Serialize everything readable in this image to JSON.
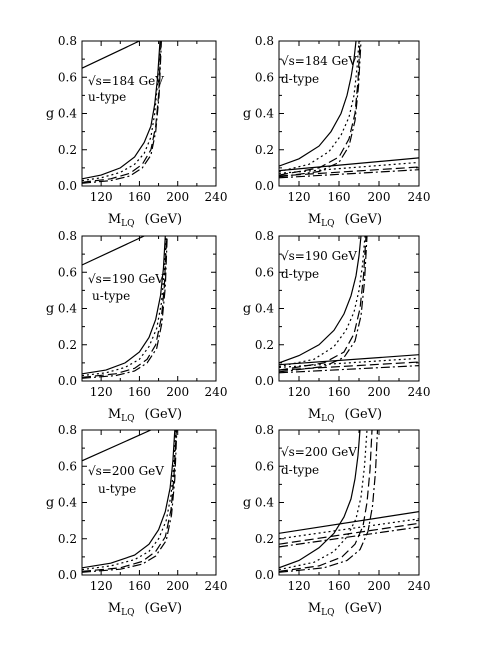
{
  "chart_data": [
    {
      "type": "line",
      "panel": "top-left",
      "xlabel_main": "M",
      "xlabel_sub": "LQ",
      "xlabel_unit": "(GeV)",
      "ylabel": "g",
      "xlim": [
        100,
        240
      ],
      "ylim": [
        0.0,
        0.8
      ],
      "xticks": [
        "120",
        "160",
        "200",
        "240"
      ],
      "yticks": [
        "0.0",
        "0.2",
        "0.4",
        "0.6",
        "0.8"
      ],
      "annotations": [
        "√s=184 GeV",
        "u-type"
      ],
      "series": [
        {
          "style": "solid",
          "thick": true,
          "x": [
            100,
            160
          ],
          "y": [
            0.65,
            0.8
          ]
        },
        {
          "style": "solid",
          "x": [
            100,
            120,
            140,
            155,
            165,
            172,
            176,
            179,
            181.5
          ],
          "y": [
            0.04,
            0.06,
            0.1,
            0.16,
            0.24,
            0.33,
            0.45,
            0.6,
            0.8
          ]
        },
        {
          "style": "dotted",
          "x": [
            100,
            120,
            140,
            155,
            165,
            172,
            176,
            179,
            182
          ],
          "y": [
            0.03,
            0.045,
            0.075,
            0.12,
            0.18,
            0.27,
            0.4,
            0.57,
            0.8
          ]
        },
        {
          "style": "dashed",
          "x": [
            100,
            130,
            150,
            163,
            172,
            177,
            180,
            182.5
          ],
          "y": [
            0.02,
            0.04,
            0.07,
            0.12,
            0.2,
            0.33,
            0.5,
            0.8
          ]
        },
        {
          "style": "dashdot",
          "x": [
            100,
            130,
            150,
            163,
            172,
            177,
            180.5,
            183
          ],
          "y": [
            0.015,
            0.03,
            0.055,
            0.1,
            0.17,
            0.3,
            0.5,
            0.8
          ]
        }
      ]
    },
    {
      "type": "line",
      "panel": "top-right",
      "xlabel_main": "M",
      "xlabel_sub": "LQ",
      "xlabel_unit": "(GeV)",
      "ylabel": "g",
      "xlim": [
        100,
        240
      ],
      "ylim": [
        0.0,
        0.8
      ],
      "xticks": [
        "120",
        "160",
        "200",
        "240"
      ],
      "yticks": [
        "0.0",
        "0.2",
        "0.4",
        "0.6",
        "0.8"
      ],
      "annotations": [
        "√s=184 GeV",
        "d-type"
      ],
      "series": [
        {
          "style": "solid",
          "x": [
            100,
            120,
            140,
            152,
            162,
            168,
            172,
            175,
            177
          ],
          "y": [
            0.11,
            0.15,
            0.22,
            0.3,
            0.4,
            0.5,
            0.6,
            0.7,
            0.8
          ]
        },
        {
          "style": "dotted",
          "x": [
            100,
            130,
            150,
            162,
            170,
            175,
            178,
            180
          ],
          "y": [
            0.08,
            0.12,
            0.19,
            0.28,
            0.38,
            0.5,
            0.65,
            0.8
          ]
        },
        {
          "style": "dashed",
          "x": [
            100,
            140,
            160,
            170,
            176,
            179,
            181
          ],
          "y": [
            0.06,
            0.1,
            0.16,
            0.26,
            0.4,
            0.58,
            0.8
          ]
        },
        {
          "style": "dashdot",
          "x": [
            100,
            140,
            160,
            170,
            176,
            179.5,
            182
          ],
          "y": [
            0.05,
            0.08,
            0.13,
            0.22,
            0.36,
            0.55,
            0.8
          ]
        },
        {
          "style": "solid",
          "x": [
            100,
            240
          ],
          "y": [
            0.085,
            0.155
          ]
        },
        {
          "style": "dotted",
          "x": [
            100,
            240
          ],
          "y": [
            0.07,
            0.13
          ]
        },
        {
          "style": "dashed",
          "x": [
            100,
            240
          ],
          "y": [
            0.055,
            0.105
          ]
        },
        {
          "style": "dashdot",
          "x": [
            100,
            240
          ],
          "y": [
            0.045,
            0.09
          ]
        }
      ]
    },
    {
      "type": "line",
      "panel": "middle-left",
      "xlabel_main": "M",
      "xlabel_sub": "LQ",
      "xlabel_unit": "(GeV)",
      "ylabel": "g",
      "xlim": [
        100,
        240
      ],
      "ylim": [
        0.0,
        0.8
      ],
      "xticks": [
        "120",
        "160",
        "200",
        "240"
      ],
      "yticks": [
        "0.0",
        "0.2",
        "0.4",
        "0.6",
        "0.8"
      ],
      "annotations": [
        "√s=190 GeV",
        "u-type"
      ],
      "series": [
        {
          "style": "solid",
          "thick": true,
          "x": [
            100,
            165
          ],
          "y": [
            0.64,
            0.8
          ]
        },
        {
          "style": "solid",
          "x": [
            100,
            125,
            145,
            160,
            170,
            177,
            182,
            185,
            187
          ],
          "y": [
            0.04,
            0.06,
            0.1,
            0.16,
            0.24,
            0.34,
            0.47,
            0.62,
            0.8
          ]
        },
        {
          "style": "dotted",
          "x": [
            100,
            125,
            145,
            160,
            170,
            178,
            183,
            186,
            188
          ],
          "y": [
            0.03,
            0.045,
            0.075,
            0.12,
            0.19,
            0.29,
            0.43,
            0.6,
            0.8
          ]
        },
        {
          "style": "dashed",
          "x": [
            100,
            135,
            155,
            168,
            177,
            183,
            186,
            188.5
          ],
          "y": [
            0.02,
            0.04,
            0.07,
            0.12,
            0.2,
            0.35,
            0.52,
            0.8
          ]
        },
        {
          "style": "dashdot",
          "x": [
            100,
            135,
            155,
            168,
            178,
            183.5,
            187,
            189
          ],
          "y": [
            0.015,
            0.03,
            0.055,
            0.1,
            0.18,
            0.32,
            0.52,
            0.8
          ]
        }
      ]
    },
    {
      "type": "line",
      "panel": "middle-right",
      "xlabel_main": "M",
      "xlabel_sub": "LQ",
      "xlabel_unit": "(GeV)",
      "ylabel": "g",
      "xlim": [
        100,
        240
      ],
      "ylim": [
        0.0,
        0.8
      ],
      "xticks": [
        "120",
        "160",
        "200",
        "240"
      ],
      "yticks": [
        "0.0",
        "0.2",
        "0.4",
        "0.6",
        "0.8"
      ],
      "annotations": [
        "√s=190 GeV",
        "d-type"
      ],
      "series": [
        {
          "style": "solid",
          "x": [
            100,
            120,
            140,
            155,
            165,
            172,
            177,
            180,
            182
          ],
          "y": [
            0.1,
            0.14,
            0.2,
            0.28,
            0.37,
            0.47,
            0.58,
            0.69,
            0.8
          ]
        },
        {
          "style": "dotted",
          "x": [
            100,
            135,
            155,
            167,
            175,
            180,
            183.5,
            186
          ],
          "y": [
            0.08,
            0.12,
            0.19,
            0.28,
            0.38,
            0.5,
            0.64,
            0.8
          ]
        },
        {
          "style": "dashed",
          "x": [
            100,
            145,
            165,
            175,
            181,
            184.5,
            187
          ],
          "y": [
            0.06,
            0.1,
            0.16,
            0.26,
            0.4,
            0.58,
            0.8
          ]
        },
        {
          "style": "dashdot",
          "x": [
            100,
            145,
            165,
            176,
            182,
            185.5,
            188
          ],
          "y": [
            0.05,
            0.08,
            0.13,
            0.22,
            0.36,
            0.55,
            0.8
          ]
        },
        {
          "style": "solid",
          "x": [
            100,
            240
          ],
          "y": [
            0.09,
            0.145
          ]
        },
        {
          "style": "dotted",
          "x": [
            100,
            240
          ],
          "y": [
            0.075,
            0.125
          ]
        },
        {
          "style": "dashed",
          "x": [
            100,
            240
          ],
          "y": [
            0.06,
            0.105
          ]
        },
        {
          "style": "dashdot",
          "x": [
            100,
            240
          ],
          "y": [
            0.045,
            0.085
          ]
        }
      ]
    },
    {
      "type": "line",
      "panel": "bottom-left",
      "xlabel_main": "M",
      "xlabel_sub": "LQ",
      "xlabel_unit": "(GeV)",
      "ylabel": "g",
      "xlim": [
        100,
        240
      ],
      "ylim": [
        0.0,
        0.8
      ],
      "xticks": [
        "120",
        "160",
        "200",
        "240"
      ],
      "yticks": [
        "0.0",
        "0.2",
        "0.4",
        "0.6",
        "0.8"
      ],
      "annotations": [
        "√s=200 GeV",
        "u-type"
      ],
      "series": [
        {
          "style": "solid",
          "thick": true,
          "x": [
            100,
            172
          ],
          "y": [
            0.63,
            0.8
          ]
        },
        {
          "style": "solid",
          "x": [
            100,
            130,
            155,
            170,
            180,
            187,
            192,
            195,
            197
          ],
          "y": [
            0.04,
            0.065,
            0.11,
            0.17,
            0.25,
            0.35,
            0.48,
            0.63,
            0.8
          ]
        },
        {
          "style": "dotted",
          "x": [
            100,
            130,
            155,
            170,
            180,
            188,
            193,
            196,
            198
          ],
          "y": [
            0.03,
            0.05,
            0.085,
            0.13,
            0.2,
            0.3,
            0.44,
            0.61,
            0.8
          ]
        },
        {
          "style": "dashed",
          "x": [
            100,
            140,
            163,
            177,
            187,
            193,
            196,
            198.5
          ],
          "y": [
            0.02,
            0.04,
            0.075,
            0.13,
            0.21,
            0.36,
            0.54,
            0.8
          ]
        },
        {
          "style": "dashdot",
          "x": [
            100,
            140,
            163,
            177,
            188,
            193.5,
            197,
            199
          ],
          "y": [
            0.015,
            0.032,
            0.06,
            0.105,
            0.19,
            0.33,
            0.53,
            0.8
          ]
        }
      ]
    },
    {
      "type": "line",
      "panel": "bottom-right",
      "xlabel_main": "M",
      "xlabel_sub": "LQ",
      "xlabel_unit": "(GeV)",
      "ylabel": "g",
      "xlim": [
        100,
        240
      ],
      "ylim": [
        0.0,
        0.8
      ],
      "xticks": [
        "120",
        "160",
        "200",
        "240"
      ],
      "yticks": [
        "0.0",
        "0.2",
        "0.4",
        "0.6",
        "0.8"
      ],
      "annotations": [
        "√s=200 GeV",
        "d-type"
      ],
      "series": [
        {
          "style": "solid",
          "x": [
            100,
            120,
            140,
            155,
            165,
            172,
            176,
            179,
            181
          ],
          "y": [
            0.04,
            0.08,
            0.15,
            0.23,
            0.32,
            0.42,
            0.53,
            0.66,
            0.8
          ]
        },
        {
          "style": "dotted",
          "x": [
            100,
            135,
            155,
            168,
            177,
            182,
            185.5,
            188
          ],
          "y": [
            0.03,
            0.07,
            0.13,
            0.21,
            0.31,
            0.43,
            0.6,
            0.8
          ]
        },
        {
          "style": "dashed",
          "x": [
            100,
            140,
            163,
            176,
            184,
            188,
            191,
            193
          ],
          "y": [
            0.02,
            0.05,
            0.1,
            0.17,
            0.27,
            0.4,
            0.58,
            0.8
          ]
        },
        {
          "style": "dashdot",
          "x": [
            100,
            145,
            168,
            181,
            189,
            193.5,
            196.5,
            198.5
          ],
          "y": [
            0.015,
            0.04,
            0.08,
            0.14,
            0.24,
            0.38,
            0.57,
            0.8
          ]
        },
        {
          "style": "solid",
          "x": [
            100,
            240
          ],
          "y": [
            0.23,
            0.35
          ]
        },
        {
          "style": "dotted",
          "x": [
            100,
            240
          ],
          "y": [
            0.2,
            0.31
          ]
        },
        {
          "style": "dashed",
          "x": [
            100,
            240
          ],
          "y": [
            0.17,
            0.285
          ]
        },
        {
          "style": "dashdot",
          "x": [
            100,
            240
          ],
          "y": [
            0.155,
            0.265
          ]
        }
      ]
    }
  ]
}
